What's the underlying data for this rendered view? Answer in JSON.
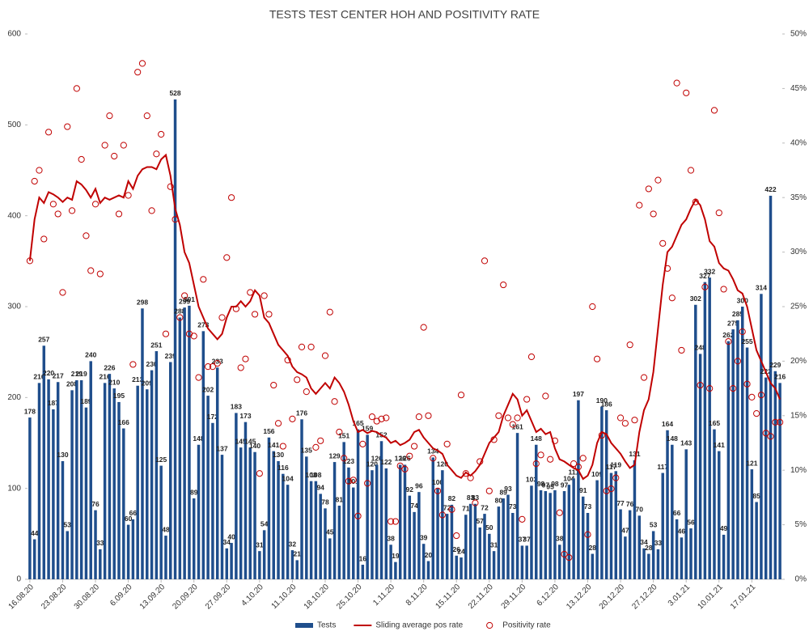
{
  "chart_data": {
    "type": "combo",
    "title": "TESTS TEST CENTER HOH AND POSITIVITY RATE",
    "categories": [
      "16.08.20",
      null,
      null,
      null,
      null,
      null,
      null,
      "23.08.20",
      null,
      null,
      null,
      null,
      null,
      null,
      "30.08.20",
      null,
      null,
      null,
      null,
      null,
      null,
      "6.09.20",
      null,
      null,
      null,
      null,
      null,
      null,
      "13.09.20",
      null,
      null,
      null,
      null,
      null,
      null,
      "20.09.20",
      null,
      null,
      null,
      null,
      null,
      null,
      "27.09.20",
      null,
      null,
      null,
      null,
      null,
      null,
      "4.10.20",
      null,
      null,
      null,
      null,
      null,
      null,
      "11.10.20",
      null,
      null,
      null,
      null,
      null,
      null,
      "18.10.20",
      null,
      null,
      null,
      null,
      null,
      null,
      "25.10.20",
      null,
      null,
      null,
      null,
      null,
      null,
      "1.11.20",
      null,
      null,
      null,
      null,
      null,
      null,
      "8.11.20",
      null,
      null,
      null,
      null,
      null,
      null,
      "15.11.20",
      null,
      null,
      null,
      null,
      null,
      null,
      "22.11.20",
      null,
      null,
      null,
      null,
      null,
      null,
      "29.11.20",
      null,
      null,
      null,
      null,
      null,
      null,
      "6.12.20",
      null,
      null,
      null,
      null,
      null,
      null,
      "13.12.20",
      null,
      null,
      null,
      null,
      null,
      null,
      "20.12.20",
      null,
      null,
      null,
      null,
      null,
      null,
      "27.12.20",
      null,
      null,
      null,
      null,
      null,
      null,
      "3.01.21",
      null,
      null,
      null,
      null,
      null,
      null,
      "10.01.21",
      null,
      null,
      null,
      null,
      null,
      null,
      "17.01.21",
      null,
      null,
      null,
      null,
      null,
      null
    ],
    "series": [
      {
        "name": "Tests",
        "type": "bar",
        "color": "#1f4e8c",
        "axis": "y",
        "values": [
          178,
          44,
          216,
          257,
          220,
          187,
          217,
          130,
          53,
          208,
          219,
          219,
          189,
          240,
          76,
          33,
          216,
          226,
          210,
          195,
          166,
          60,
          66,
          213,
          298,
          209,
          230,
          251,
          125,
          48,
          239,
          528,
          288,
          299,
          301,
          89,
          148,
          273,
          202,
          172,
          233,
          137,
          34,
          40,
          183,
          145,
          173,
          145,
          140,
          31,
          54,
          156,
          141,
          130,
          116,
          104,
          32,
          21,
          176,
          135,
          108,
          108,
          94,
          78,
          45,
          129,
          81,
          151,
          123,
          101,
          165,
          16,
          159,
          120,
          126,
          152,
          122,
          38,
          19,
          126,
          126,
          92,
          74,
          96,
          39,
          20,
          134,
          100,
          120,
          72,
          82,
          26,
          24,
          71,
          83,
          83,
          57,
          72,
          50,
          31,
          80,
          89,
          93,
          73,
          161,
          37,
          37,
          103,
          148,
          98,
          97,
          95,
          98,
          38,
          97,
          104,
          111,
          197,
          91,
          73,
          28,
          109,
          190,
          186,
          117,
          119,
          77,
          47,
          76,
          131,
          70,
          34,
          28,
          53,
          33,
          117,
          164,
          148,
          66,
          46,
          143,
          56,
          302,
          248,
          327,
          332,
          165,
          141,
          49,
          262,
          275,
          285,
          300,
          255,
          121,
          85,
          314,
          222,
          422,
          229,
          216
        ]
      },
      {
        "name": "Sliding average pos rate",
        "type": "line",
        "color": "#c00000",
        "axis": "y2",
        "values": [
          29.2,
          33,
          35,
          34.5,
          35.5,
          35.3,
          35,
          34.6,
          35,
          34.8,
          36.5,
          36.2,
          35.7,
          35,
          35.8,
          34.5,
          35,
          34.8,
          35,
          35.2,
          35,
          36.5,
          35.8,
          37,
          37.6,
          37.8,
          37.8,
          37.6,
          38.5,
          38.9,
          37,
          34,
          32.5,
          30,
          29,
          27,
          25,
          24,
          23,
          22.5,
          22,
          22.5,
          24,
          25,
          25,
          25.5,
          25,
          25.5,
          26.5,
          26,
          24,
          23.5,
          22.5,
          21.5,
          21,
          20.5,
          19.5,
          19,
          18.8,
          18.5,
          17.5,
          17,
          17.5,
          18,
          17.5,
          18.5,
          18,
          17.2,
          16,
          14.5,
          13.5,
          13.7,
          13.4,
          13.6,
          13.5,
          13.2,
          13,
          12.5,
          12.7,
          12.3,
          12.5,
          12.8,
          13.5,
          13.7,
          13,
          12.5,
          12,
          11.8,
          11.5,
          10.5,
          10,
          9.5,
          9.3,
          9.8,
          9.5,
          9.9,
          10.5,
          11.5,
          12.5,
          13,
          13.5,
          15,
          16,
          17,
          16.5,
          15,
          15.5,
          14.5,
          13.5,
          13.8,
          13.3,
          13.5,
          12,
          11,
          10.8,
          10.5,
          10.2,
          10,
          9.2,
          9.5,
          10.5,
          12.5,
          13.5,
          13.3,
          12.5,
          12,
          11.5,
          10.8,
          10.2,
          10.5,
          13.5,
          15.5,
          16.5,
          19,
          23,
          27,
          30,
          30.5,
          31.5,
          32.5,
          33,
          34,
          34.8,
          34.3,
          33,
          31,
          30.5,
          29,
          28.5,
          28.3,
          27.5,
          26.5,
          26.2,
          25,
          23,
          21,
          20,
          19,
          18,
          17.5,
          16.5
        ]
      },
      {
        "name": "Positivity rate",
        "type": "scatter",
        "color": "#c00000",
        "axis": "y2",
        "values": [
          29.2,
          36.5,
          37.5,
          31.2,
          41,
          34.4,
          33.5,
          26.3,
          41.5,
          33.8,
          45,
          38.5,
          31.5,
          28.3,
          34.4,
          28,
          39.8,
          42.5,
          38.8,
          33.5,
          39.8,
          35.2,
          19.7,
          46.5,
          47.3,
          42.5,
          33.8,
          39,
          40.8,
          22.5,
          36,
          33,
          24,
          26,
          22.5,
          22.3,
          18.5,
          27.5,
          19.5,
          19.5,
          19.8,
          24,
          29.5,
          35,
          24.8,
          19.4,
          20.2,
          26.3,
          24.3,
          9.7,
          26,
          24.3,
          17.8,
          14.3,
          12.2,
          20.1,
          14.7,
          18.3,
          21.3,
          17.2,
          21.3,
          12.1,
          12.7,
          20.5,
          24.5,
          16.3,
          13.5,
          11.1,
          9,
          9.1,
          5.8,
          12.4,
          8.8,
          14.9,
          14.5,
          14.7,
          14.8,
          5.3,
          5.3,
          10.4,
          10.1,
          11.3,
          12.2,
          14.9,
          23.1,
          15,
          11.1,
          8.1,
          5.9,
          12.4,
          6.4,
          4,
          16.9,
          9.7,
          9.3,
          7,
          10.8,
          29.2,
          8.1,
          12.8,
          15,
          27,
          14.8,
          14.2,
          14.8,
          5.5,
          16.5,
          20.4,
          10.6,
          11.4,
          16.8,
          11,
          12.7,
          6.1,
          2.3,
          2,
          10.6,
          10.3,
          11.1,
          4.1,
          25,
          20.2,
          13.2,
          8.1,
          8.3,
          9.3,
          14.8,
          14.3,
          21.5,
          14.6,
          34.3,
          18.5,
          35.8,
          33.5,
          36.6,
          30.8,
          28.5,
          25.8,
          45.5,
          21,
          44.6,
          37.5,
          34.6,
          17.8,
          26.8,
          17.5,
          43,
          33.6,
          26.6,
          21.8,
          17.5,
          20,
          22.7,
          17.9,
          16.7,
          15.2,
          16.9,
          13.4,
          13.1,
          14.4,
          14.4
        ]
      }
    ],
    "ylim": [
      0,
      600
    ],
    "yticks": [
      0,
      100,
      200,
      300,
      400,
      500,
      600
    ],
    "y2lim": [
      0,
      50
    ],
    "y2ticks": [
      {
        "value": 0,
        "label": "0%"
      },
      {
        "value": 5,
        "label": "5%"
      },
      {
        "value": 10,
        "label": "10%"
      },
      {
        "value": 15,
        "label": "15%"
      },
      {
        "value": 20,
        "label": "20%"
      },
      {
        "value": 25,
        "label": "25%"
      },
      {
        "value": 30,
        "label": "30%"
      },
      {
        "value": 35,
        "label": "35%"
      },
      {
        "value": 40,
        "label": "40%"
      },
      {
        "value": 45,
        "label": "45%"
      },
      {
        "value": 50,
        "label": "50%"
      }
    ],
    "grid": false,
    "legend": "bottom"
  }
}
